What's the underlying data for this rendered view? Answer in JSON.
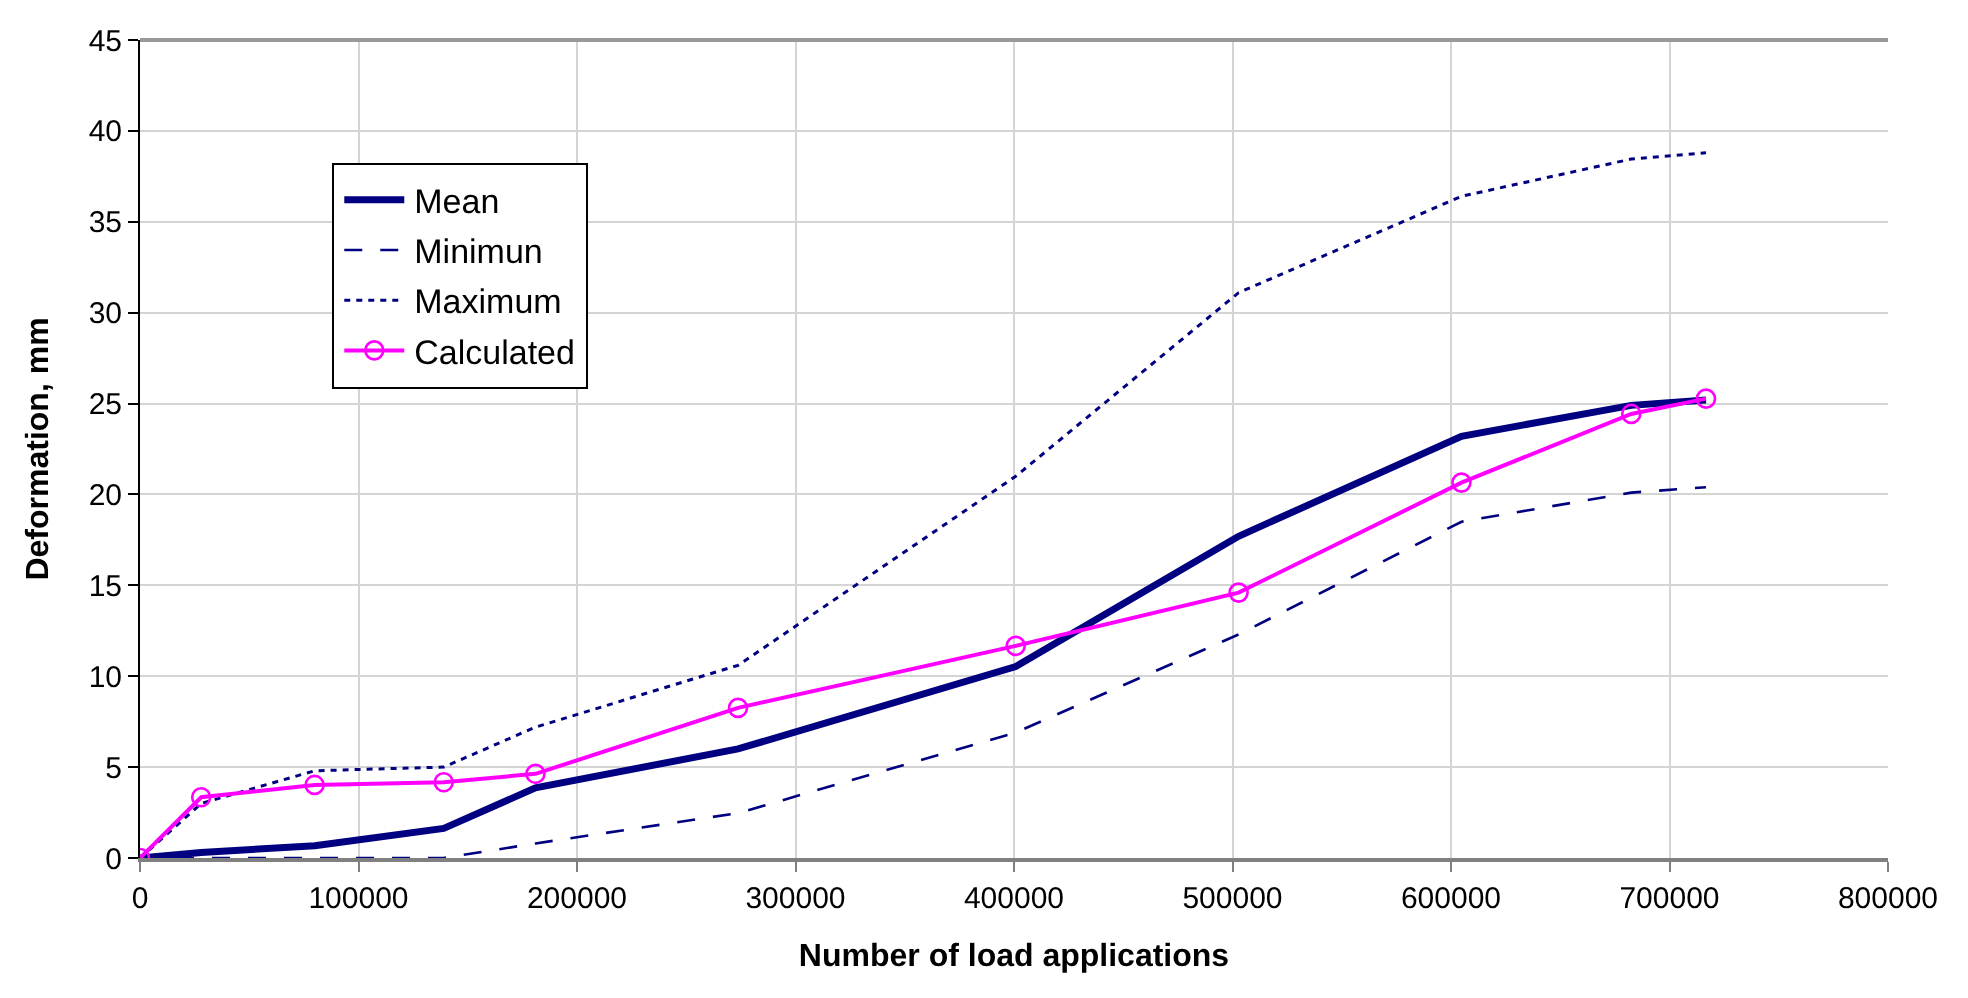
{
  "chart_data": {
    "type": "line",
    "xlabel": "Number of load applications",
    "ylabel": "Deformation, mm",
    "xlim": [
      0,
      800000
    ],
    "xticks": [
      0,
      100000,
      200000,
      300000,
      400000,
      500000,
      600000,
      700000,
      800000
    ],
    "ylim": [
      0,
      45
    ],
    "yticks": [
      0,
      5,
      10,
      15,
      20,
      25,
      30,
      35,
      40,
      45
    ],
    "grid": true,
    "legend": "top left",
    "series": [
      {
        "name": "Mean",
        "color": "#000080",
        "line_style": "solid",
        "marker": "none",
        "x": [
          0,
          28000,
          80000,
          139000,
          181000,
          273700,
          400800,
          502800,
          604800,
          682500,
          716700
        ],
        "values": [
          0,
          0.3,
          0.68,
          1.63,
          3.86,
          6.0,
          10.53,
          17.7,
          23.2,
          24.9,
          25.2
        ]
      },
      {
        "name": "Minimun",
        "color": "#000080",
        "line_style": "dashed",
        "marker": "none",
        "x": [
          0,
          28000,
          80000,
          139000,
          181000,
          273700,
          400800,
          502800,
          604800,
          682500,
          716700
        ],
        "values": [
          0,
          0,
          0,
          0,
          0.8,
          2.47,
          6.9,
          12.3,
          18.5,
          20.1,
          20.4
        ]
      },
      {
        "name": "Maximum",
        "color": "#000080",
        "line_style": "dotted",
        "marker": "none",
        "x": [
          0,
          28000,
          80000,
          139000,
          181000,
          273700,
          400800,
          502800,
          604800,
          682500,
          716700
        ],
        "values": [
          0,
          3.0,
          4.8,
          5.0,
          7.2,
          10.6,
          21.0,
          31.1,
          36.4,
          38.45,
          38.8
        ]
      },
      {
        "name": "Calculated",
        "color": "#ff00ff",
        "line_style": "solid",
        "marker": "circle",
        "x": [
          0,
          28000,
          79900,
          139000,
          181000,
          273700,
          400800,
          502800,
          604800,
          682500,
          716700
        ],
        "values": [
          0,
          3.34,
          4.02,
          4.17,
          4.63,
          8.26,
          11.67,
          14.6,
          20.65,
          24.43,
          25.27
        ]
      }
    ]
  }
}
